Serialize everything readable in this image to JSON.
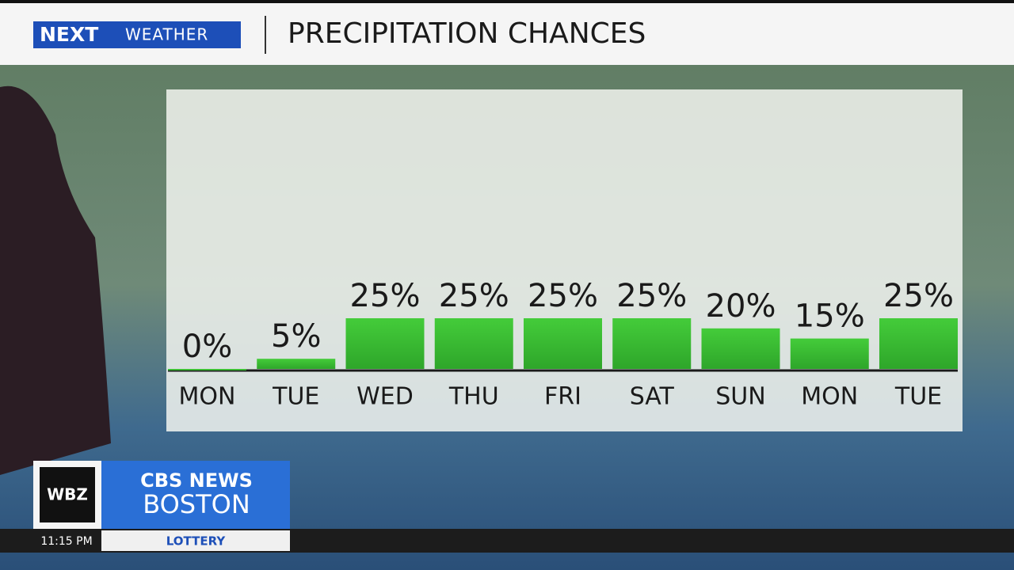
{
  "branding": {
    "logo": "NEXT",
    "logo_sub": "WEATHER",
    "station": "WBZ",
    "network": "CBS NEWS",
    "city": "BOSTON",
    "time": "11:15 PM",
    "ticker": "LOTTERY"
  },
  "chart_data": {
    "type": "bar",
    "title": "PRECIPITATION CHANCES",
    "categories": [
      "MON",
      "TUE",
      "WED",
      "THU",
      "FRI",
      "SAT",
      "SUN",
      "MON",
      "TUE"
    ],
    "values": [
      0,
      5,
      25,
      25,
      25,
      25,
      20,
      15,
      25
    ],
    "value_labels": [
      "0%",
      "5%",
      "25%",
      "25%",
      "25%",
      "25%",
      "20%",
      "15%",
      "25%"
    ],
    "color": "#3cc236"
  }
}
